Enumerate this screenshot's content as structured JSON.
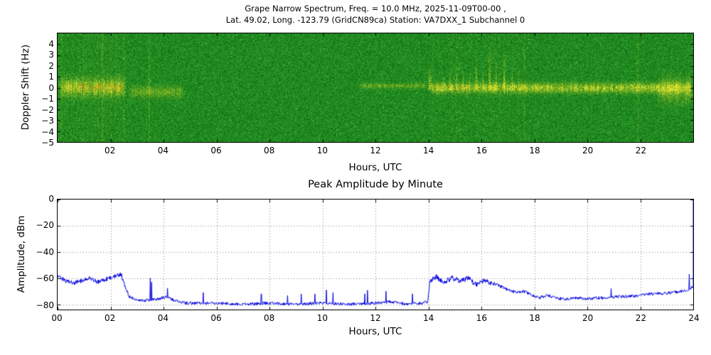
{
  "chart_data": [
    {
      "type": "heatmap",
      "title_line1": "Grape Narrow Spectrum, Freq. = 10.0 MHz, 2025-11-09T00-00 ,",
      "title_line2": "Lat.  49.02, Long. -123.79 (GridCN89ca) Station: VA7DXX_1 Subchannel 0",
      "xlabel": "Hours, UTC",
      "ylabel": "Doppler Shift (Hz)",
      "xlim": [
        0,
        24
      ],
      "ylim": [
        -5,
        5
      ],
      "xtick_values": [
        2,
        4,
        6,
        8,
        10,
        12,
        14,
        16,
        18,
        20,
        22
      ],
      "xtick_labels": [
        "02",
        "04",
        "06",
        "08",
        "10",
        "12",
        "14",
        "16",
        "18",
        "20",
        "22"
      ],
      "ytick_values": [
        4,
        3,
        2,
        1,
        0,
        -1,
        -2,
        -3,
        -4,
        -5
      ],
      "ytick_labels": [
        "4",
        "3",
        "2",
        "1",
        "0",
        "−1",
        "−2",
        "−3",
        "−4",
        "−5"
      ],
      "colors": {
        "background_dark": "#0b6d0b",
        "background_light": "#36a536",
        "signal_yellow": "#f2ee30",
        "peak_red": "#d02f05",
        "frame": "#000000"
      },
      "description": "Doppler spectrogram: speckled green noise background with a yellow carrier band near 0 Hz; red peak specks inside band 00:24-02:30 and 14:12-15:30; quiet gap ~05-11 UTC; vertical flare plumes rising to +4 Hz between 14 and 17.5 UTC",
      "bands": [
        {
          "t0": 0.0,
          "t1": 2.6,
          "f": 0.05,
          "sigma": 0.5,
          "amp": 1.0,
          "red": true,
          "red_t0": 0.4,
          "red_t1": 2.5,
          "red_dens": 0.12
        },
        {
          "t0": 2.6,
          "t1": 4.8,
          "f": -0.35,
          "sigma": 0.35,
          "amp": 0.5
        },
        {
          "t0": 11.3,
          "t1": 14.0,
          "f": 0.2,
          "sigma": 0.15,
          "amp": 0.5
        },
        {
          "t0": 14.0,
          "t1": 24.0,
          "f": 0.0,
          "sigma": 0.3,
          "amp": 0.95,
          "red": true,
          "red_t0": 14.2,
          "red_t1": 15.5,
          "red_dens": 0.06
        },
        {
          "t0": 22.6,
          "t1": 24.0,
          "f": -0.2,
          "sigma": 0.7,
          "amp": 0.6
        }
      ],
      "plumes": [
        [
          14.05,
          0.1,
          2.3,
          1.0
        ],
        [
          14.3,
          0.04,
          1.2,
          0.6
        ],
        [
          14.55,
          0.05,
          1.6,
          0.7
        ],
        [
          14.8,
          0.06,
          2.0,
          0.8
        ],
        [
          15.05,
          0.05,
          2.4,
          0.8
        ],
        [
          15.3,
          0.04,
          1.8,
          0.7
        ],
        [
          15.55,
          0.05,
          2.1,
          0.75
        ],
        [
          15.8,
          0.06,
          2.9,
          0.85
        ],
        [
          16.05,
          0.05,
          2.5,
          0.8
        ],
        [
          16.3,
          0.06,
          4.5,
          1.0
        ],
        [
          16.55,
          0.05,
          3.1,
          0.9
        ],
        [
          16.85,
          0.07,
          3.7,
          0.9
        ],
        [
          17.15,
          0.05,
          2.3,
          0.7
        ],
        [
          17.4,
          0.04,
          1.5,
          0.6
        ]
      ],
      "vnoise": [
        {
          "t0": 0.0,
          "t1": 2.6,
          "amp": 0.3
        },
        {
          "t0": 14.0,
          "t1": 17.6,
          "amp": 0.15
        }
      ],
      "vlines": [
        {
          "t": 3.45,
          "amp": 0.3
        },
        {
          "t": 17.62,
          "amp": 0.22
        },
        {
          "t": 21.9,
          "amp": 0.14
        }
      ]
    },
    {
      "type": "line",
      "title": "Peak Amplitude by Minute",
      "xlabel": "Hours, UTC",
      "ylabel": "Amplitude, dBm",
      "xlim": [
        0,
        24
      ],
      "ylim": [
        -84,
        0
      ],
      "xtick_values": [
        0,
        2,
        4,
        6,
        8,
        10,
        12,
        14,
        16,
        18,
        20,
        22,
        24
      ],
      "xtick_labels": [
        "00",
        "02",
        "04",
        "06",
        "08",
        "10",
        "12",
        "14",
        "16",
        "18",
        "20",
        "22",
        "24"
      ],
      "ytick_values": [
        0,
        -20,
        -40,
        -60,
        -80
      ],
      "ytick_labels": [
        "0",
        "−20",
        "−40",
        "−60",
        "−80"
      ],
      "line_color": "#0000dd",
      "grid": true,
      "grid_color": "#808080",
      "anchors_hours_dbm": [
        [
          0.0,
          -58
        ],
        [
          0.3,
          -62
        ],
        [
          0.6,
          -64
        ],
        [
          0.9,
          -62
        ],
        [
          1.2,
          -60
        ],
        [
          1.5,
          -63
        ],
        [
          1.8,
          -61
        ],
        [
          2.1,
          -59
        ],
        [
          2.4,
          -57
        ],
        [
          2.55,
          -66
        ],
        [
          2.7,
          -74
        ],
        [
          3.0,
          -77
        ],
        [
          3.4,
          -77
        ],
        [
          3.8,
          -76
        ],
        [
          4.1,
          -74
        ],
        [
          4.4,
          -77
        ],
        [
          4.8,
          -79
        ],
        [
          5.2,
          -79
        ],
        [
          6.0,
          -79
        ],
        [
          7.0,
          -80
        ],
        [
          8.0,
          -79
        ],
        [
          9.0,
          -80
        ],
        [
          10.0,
          -79
        ],
        [
          11.0,
          -80
        ],
        [
          12.0,
          -79
        ],
        [
          12.6,
          -78
        ],
        [
          13.2,
          -80
        ],
        [
          13.8,
          -79
        ],
        [
          13.98,
          -78
        ],
        [
          14.05,
          -62
        ],
        [
          14.3,
          -59
        ],
        [
          14.6,
          -63
        ],
        [
          14.9,
          -60
        ],
        [
          15.2,
          -62
        ],
        [
          15.5,
          -60
        ],
        [
          15.8,
          -65
        ],
        [
          16.1,
          -62
        ],
        [
          16.4,
          -64
        ],
        [
          16.7,
          -66
        ],
        [
          17.0,
          -69
        ],
        [
          17.3,
          -71
        ],
        [
          17.6,
          -70
        ],
        [
          17.9,
          -73
        ],
        [
          18.2,
          -75
        ],
        [
          18.5,
          -73
        ],
        [
          18.8,
          -75
        ],
        [
          19.2,
          -76
        ],
        [
          19.6,
          -75
        ],
        [
          20.0,
          -76
        ],
        [
          20.4,
          -75
        ],
        [
          20.8,
          -75
        ],
        [
          21.2,
          -74
        ],
        [
          21.6,
          -74
        ],
        [
          22.0,
          -73
        ],
        [
          22.4,
          -72
        ],
        [
          22.8,
          -72
        ],
        [
          23.2,
          -71
        ],
        [
          23.6,
          -70
        ],
        [
          23.9,
          -68
        ],
        [
          24.0,
          -66
        ]
      ],
      "spikes_hours_dbm": [
        [
          3.5,
          -60
        ],
        [
          3.55,
          -63
        ],
        [
          5.5,
          -71
        ],
        [
          7.7,
          -72
        ],
        [
          9.2,
          -72
        ],
        [
          10.4,
          -71
        ],
        [
          11.6,
          -72
        ],
        [
          12.4,
          -70
        ],
        [
          13.4,
          -72
        ],
        [
          20.9,
          -68
        ],
        [
          23.85,
          -57
        ]
      ],
      "noise_db": {
        "early": 1.6,
        "mid": 1.1,
        "active": 2.0,
        "late": 1.2
      },
      "right_edge_spike_dbm": 0
    }
  ]
}
